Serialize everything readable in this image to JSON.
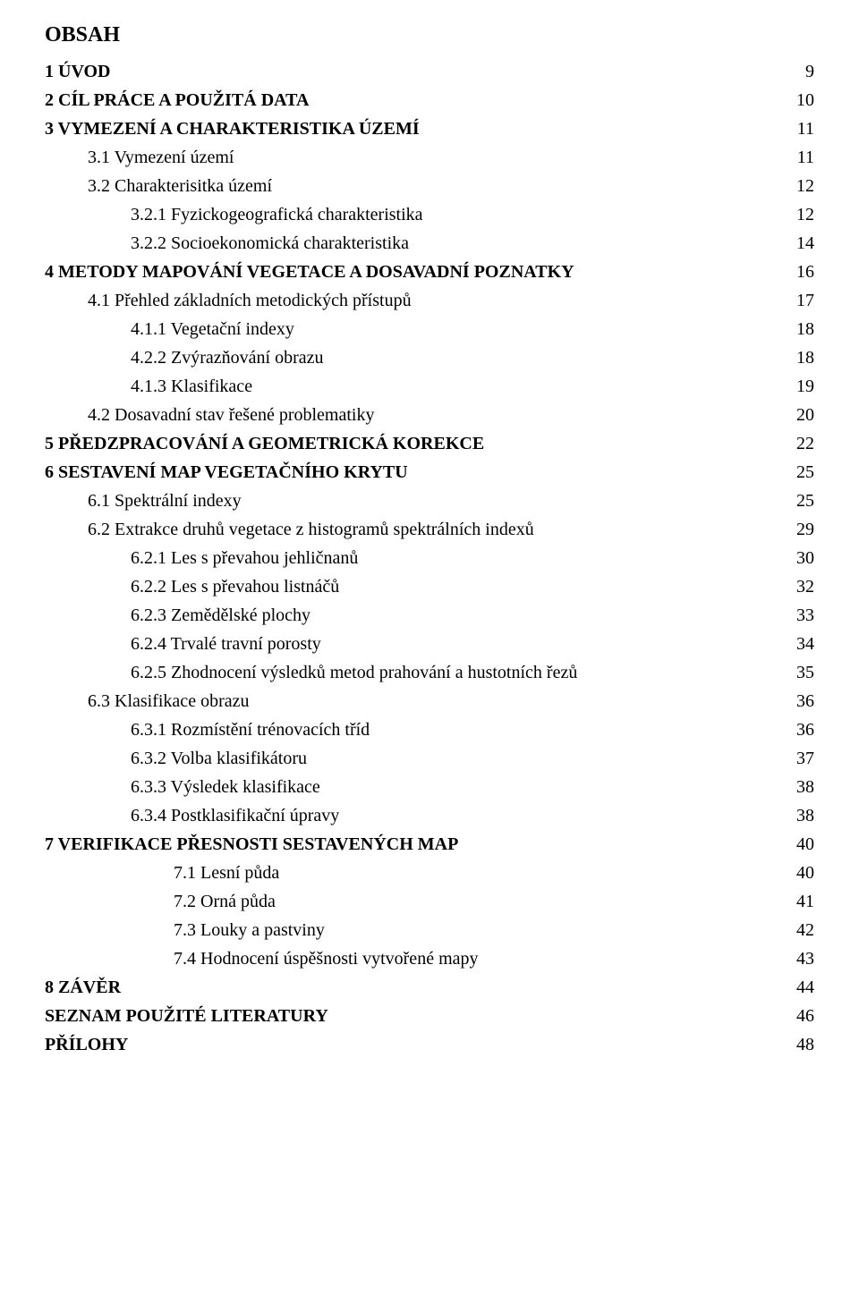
{
  "title": "OBSAH",
  "toc": [
    {
      "level": 0,
      "label": "1 ÚVOD",
      "page": "9"
    },
    {
      "level": 0,
      "label": "2 CÍL PRÁCE A POUŽITÁ DATA",
      "page": "10"
    },
    {
      "level": 0,
      "label": "3 VYMEZENÍ A CHARAKTERISTIKA ÚZEMÍ",
      "page": "11"
    },
    {
      "level": 1,
      "label": "3.1 Vymezení území",
      "page": "11"
    },
    {
      "level": 1,
      "label": "3.2 Charakterisitka území",
      "page": "12"
    },
    {
      "level": 2,
      "label": "3.2.1 Fyzickogeografická charakteristika",
      "page": "12"
    },
    {
      "level": 2,
      "label": "3.2.2 Socioekonomická charakteristika",
      "page": "14"
    },
    {
      "level": 0,
      "label": "4 METODY MAPOVÁNÍ VEGETACE A DOSAVADNÍ POZNATKY",
      "page": "16"
    },
    {
      "level": 1,
      "label": "4.1 Přehled základních metodických přístupů",
      "page": "17"
    },
    {
      "level": 2,
      "label": "4.1.1 Vegetační indexy",
      "page": "18"
    },
    {
      "level": 2,
      "label": "4.2.2 Zvýrazňování obrazu",
      "page": "18"
    },
    {
      "level": 2,
      "label": "4.1.3 Klasifikace",
      "page": "19"
    },
    {
      "level": 1,
      "label": "4.2 Dosavadní stav řešené problematiky",
      "page": "20"
    },
    {
      "level": 0,
      "label": "5 PŘEDZPRACOVÁNÍ A GEOMETRICKÁ KOREKCE",
      "page": "22"
    },
    {
      "level": 0,
      "label": "6 SESTAVENÍ MAP VEGETAČNÍHO KRYTU",
      "page": "25"
    },
    {
      "level": 1,
      "label": "6.1 Spektrální indexy",
      "page": "25"
    },
    {
      "level": 1,
      "label": "6.2 Extrakce druhů vegetace z histogramů spektrálních indexů",
      "page": "29"
    },
    {
      "level": 2,
      "label": "6.2.1 Les s převahou jehličnanů",
      "page": "30"
    },
    {
      "level": 2,
      "label": "6.2.2 Les s převahou listnáčů",
      "page": "32"
    },
    {
      "level": 2,
      "label": "6.2.3 Zemědělské plochy",
      "page": "33"
    },
    {
      "level": 2,
      "label": "6.2.4 Trvalé travní porosty",
      "page": "34"
    },
    {
      "level": 2,
      "label": "6.2.5 Zhodnocení výsledků metod prahování a hustotních řezů",
      "page": "35"
    },
    {
      "level": 1,
      "label": "6.3 Klasifikace obrazu",
      "page": "36"
    },
    {
      "level": 2,
      "label": "6.3.1 Rozmístění trénovacích tříd",
      "page": "36"
    },
    {
      "level": 2,
      "label": "6.3.2 Volba klasifikátoru",
      "page": "37"
    },
    {
      "level": 2,
      "label": "6.3.3 Výsledek klasifikace",
      "page": "38"
    },
    {
      "level": 2,
      "label": "6.3.4 Postklasifikační úpravy",
      "page": "38"
    },
    {
      "level": 0,
      "label": "7 VERIFIKACE PŘESNOSTI SESTAVENÝCH MAP",
      "page": "40"
    },
    {
      "level": 3,
      "label": "7.1 Lesní půda",
      "page": "40"
    },
    {
      "level": 3,
      "label": "7.2 Orná půda",
      "page": "41"
    },
    {
      "level": 3,
      "label": "7.3 Louky a pastviny",
      "page": "42"
    },
    {
      "level": 3,
      "label": "7.4 Hodnocení úspěšnosti vytvořené mapy",
      "page": "43"
    },
    {
      "level": 0,
      "label": "8 ZÁVĚR",
      "page": "44"
    },
    {
      "level": 0,
      "label": "SEZNAM POUŽITÉ LITERATURY",
      "page": "46"
    },
    {
      "level": 0,
      "label": "PŘÍLOHY",
      "page": "48"
    }
  ]
}
